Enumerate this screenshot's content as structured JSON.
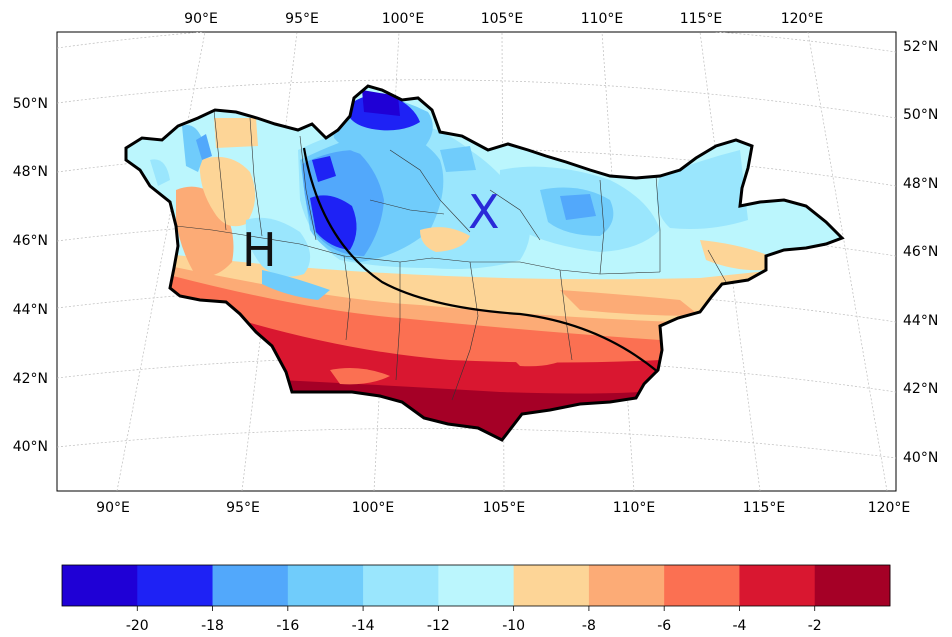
{
  "map": {
    "top_lon_labels": [
      "90°E",
      "95°E",
      "100°E",
      "105°E",
      "110°E",
      "115°E",
      "120°E"
    ],
    "bottom_lon_labels": [
      "90°E",
      "95°E",
      "100°E",
      "105°E",
      "110°E",
      "115°E",
      "120°E"
    ],
    "left_lat_labels": [
      "50°N",
      "48°N",
      "46°N",
      "44°N",
      "42°N",
      "40°N"
    ],
    "right_lat_labels": [
      "52°N",
      "50°N",
      "48°N",
      "46°N",
      "44°N",
      "42°N",
      "40°N"
    ],
    "markers": {
      "west": {
        "label": "H",
        "color": "#111111"
      },
      "east": {
        "label": "X",
        "color": "#2a2ad8"
      }
    },
    "legend": {
      "colors": [
        "#1f00d6",
        "#1e22f5",
        "#52a8fb",
        "#70ccfb",
        "#9ae6fd",
        "#bbf6fd",
        "#fdd597",
        "#fcab76",
        "#fb7052",
        "#d91730",
        "#a50026"
      ],
      "tick_labels": [
        "-20",
        "-18",
        "-16",
        "-14",
        "-12",
        "-10",
        "-8",
        "-6",
        "-4",
        "-2"
      ]
    }
  }
}
